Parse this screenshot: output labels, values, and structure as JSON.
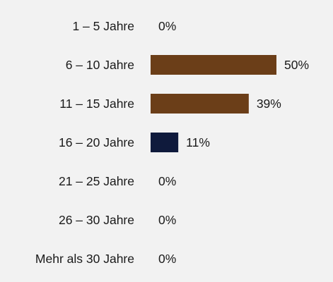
{
  "chart_data": {
    "type": "bar",
    "orientation": "horizontal",
    "categories": [
      "1 – 5 Jahre",
      "6 – 10 Jahre",
      "11 – 15 Jahre",
      "16 – 20 Jahre",
      "21 – 25 Jahre",
      "26 – 30 Jahre",
      "Mehr als 30 Jahre"
    ],
    "values": [
      0,
      50,
      39,
      11,
      0,
      0,
      0
    ],
    "value_labels": [
      "0%",
      "50%",
      "39%",
      "11%",
      "0%",
      "0%",
      "0%"
    ],
    "bar_colors": [
      "#6b3e18",
      "#6b3e18",
      "#6b3e18",
      "#0f1a3c",
      "#6b3e18",
      "#6b3e18",
      "#6b3e18"
    ],
    "xlim": [
      0,
      50
    ],
    "grid": false,
    "legend": "none"
  }
}
